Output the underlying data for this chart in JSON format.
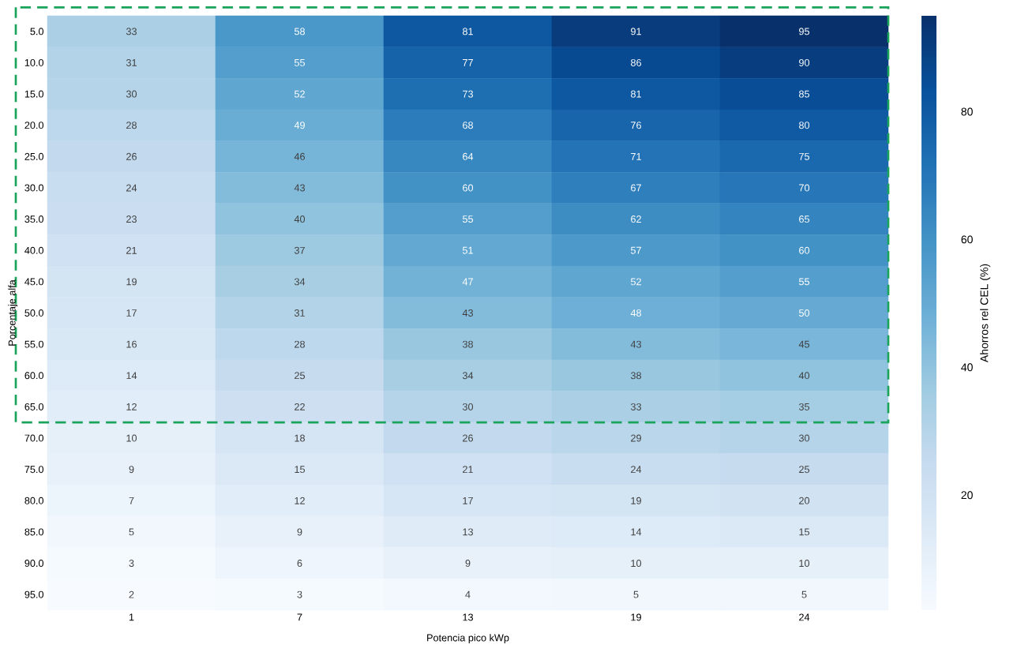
{
  "chart_data": {
    "type": "heatmap",
    "xlabel": "Potencia pico kWp",
    "ylabel": "Porcentaje alfa",
    "clabel": "Ahorros rel CEL (%)",
    "categories": [
      "1",
      "7",
      "13",
      "19",
      "24"
    ],
    "y_categories": [
      "5.0",
      "10.0",
      "15.0",
      "20.0",
      "25.0",
      "30.0",
      "35.0",
      "40.0",
      "45.0",
      "50.0",
      "55.0",
      "60.0",
      "65.0",
      "70.0",
      "75.0",
      "80.0",
      "85.0",
      "90.0",
      "95.0"
    ],
    "cells": [
      [
        33,
        58,
        81,
        91,
        95
      ],
      [
        31,
        55,
        77,
        86,
        90
      ],
      [
        30,
        52,
        73,
        81,
        85
      ],
      [
        28,
        49,
        68,
        76,
        80
      ],
      [
        26,
        46,
        64,
        71,
        75
      ],
      [
        24,
        43,
        60,
        67,
        70
      ],
      [
        23,
        40,
        55,
        62,
        65
      ],
      [
        21,
        37,
        51,
        57,
        60
      ],
      [
        19,
        34,
        47,
        52,
        55
      ],
      [
        17,
        31,
        43,
        48,
        50
      ],
      [
        16,
        28,
        38,
        43,
        45
      ],
      [
        14,
        25,
        34,
        38,
        40
      ],
      [
        12,
        22,
        30,
        33,
        35
      ],
      [
        10,
        18,
        26,
        29,
        30
      ],
      [
        9,
        15,
        21,
        24,
        25
      ],
      [
        7,
        12,
        17,
        19,
        20
      ],
      [
        5,
        9,
        13,
        14,
        15
      ],
      [
        3,
        6,
        9,
        10,
        10
      ],
      [
        2,
        3,
        4,
        5,
        5
      ]
    ],
    "clim": [
      2,
      95
    ],
    "cticks": [
      20,
      40,
      60,
      80
    ],
    "data_labels": true
  }
}
